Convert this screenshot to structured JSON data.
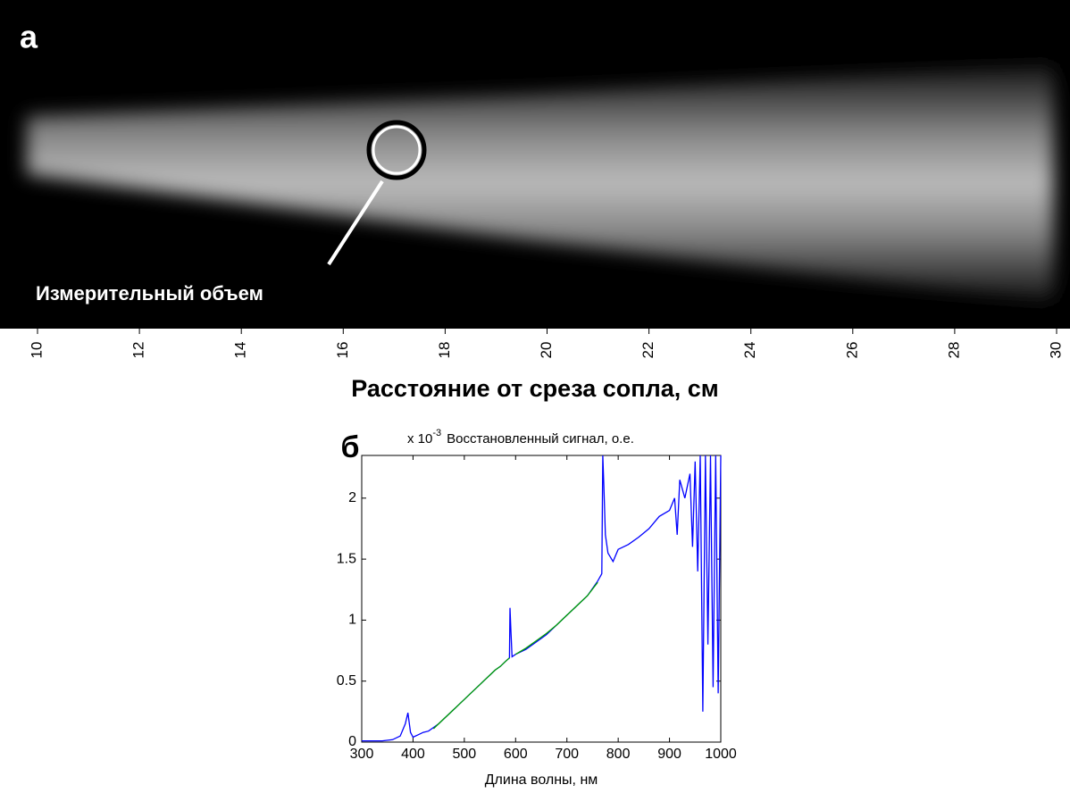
{
  "chart_data": [
    {
      "type": "image-axis",
      "panel_label": "а",
      "annotation": "Измерительный объем",
      "xlabel": "Расстояние от среза сопла, см",
      "xlim": [
        10,
        30
      ],
      "xticks": [
        10,
        12,
        14,
        16,
        18,
        20,
        22,
        24,
        26,
        28,
        30
      ]
    },
    {
      "type": "line",
      "panel_label": "б",
      "title": "Восстановленный сигнал, о.е.",
      "multiplier": "x 10",
      "multiplier_exp": "-3",
      "xlabel": "Длина волны, нм",
      "xlim": [
        300,
        1000
      ],
      "ylim": [
        0,
        2.35
      ],
      "xticks": [
        300,
        400,
        500,
        600,
        700,
        800,
        900,
        1000
      ],
      "yticks": [
        0,
        0.5,
        1,
        1.5,
        2
      ],
      "x": [
        300,
        320,
        340,
        360,
        375,
        385,
        390,
        395,
        400,
        410,
        420,
        430,
        440,
        450,
        460,
        470,
        480,
        490,
        500,
        510,
        520,
        530,
        540,
        550,
        560,
        570,
        580,
        588,
        589,
        591,
        593,
        600,
        620,
        640,
        660,
        680,
        700,
        720,
        740,
        760,
        768,
        770,
        772,
        775,
        780,
        790,
        800,
        820,
        840,
        860,
        880,
        900,
        910,
        915,
        920,
        930,
        940,
        945,
        950,
        955,
        960,
        965,
        970,
        975,
        980,
        985,
        990,
        995,
        1000
      ],
      "series": [
        {
          "color": "#0000ff",
          "values": [
            0.01,
            0.01,
            0.01,
            0.02,
            0.05,
            0.15,
            0.24,
            0.08,
            0.04,
            0.06,
            0.08,
            0.09,
            0.12,
            0.15,
            0.19,
            0.23,
            0.27,
            0.31,
            0.35,
            0.39,
            0.43,
            0.47,
            0.51,
            0.55,
            0.59,
            0.62,
            0.66,
            0.69,
            1.1,
            0.9,
            0.7,
            0.72,
            0.76,
            0.82,
            0.88,
            0.96,
            1.04,
            1.12,
            1.2,
            1.32,
            1.38,
            2.35,
            2.1,
            1.7,
            1.55,
            1.48,
            1.58,
            1.62,
            1.68,
            1.75,
            1.85,
            1.9,
            2.0,
            1.7,
            2.15,
            2.0,
            2.2,
            1.6,
            2.3,
            1.4,
            2.35,
            0.25,
            2.35,
            0.8,
            2.35,
            0.45,
            2.35,
            0.4,
            2.35
          ]
        },
        {
          "color": "#00a000",
          "values": [
            null,
            null,
            null,
            null,
            null,
            null,
            null,
            null,
            null,
            null,
            null,
            null,
            0.11,
            0.15,
            0.19,
            0.23,
            0.27,
            0.31,
            0.35,
            0.39,
            0.43,
            0.47,
            0.51,
            0.55,
            0.59,
            0.62,
            0.66,
            0.69,
            null,
            null,
            null,
            0.72,
            0.77,
            0.83,
            0.89,
            0.96,
            1.04,
            1.12,
            1.2,
            1.31,
            null,
            null,
            null,
            null,
            null,
            null,
            null,
            null,
            null,
            null,
            null,
            null,
            null,
            null,
            null,
            null,
            null,
            null,
            null,
            null,
            null,
            null,
            null,
            null,
            null,
            null,
            null,
            null,
            null
          ]
        }
      ]
    }
  ]
}
